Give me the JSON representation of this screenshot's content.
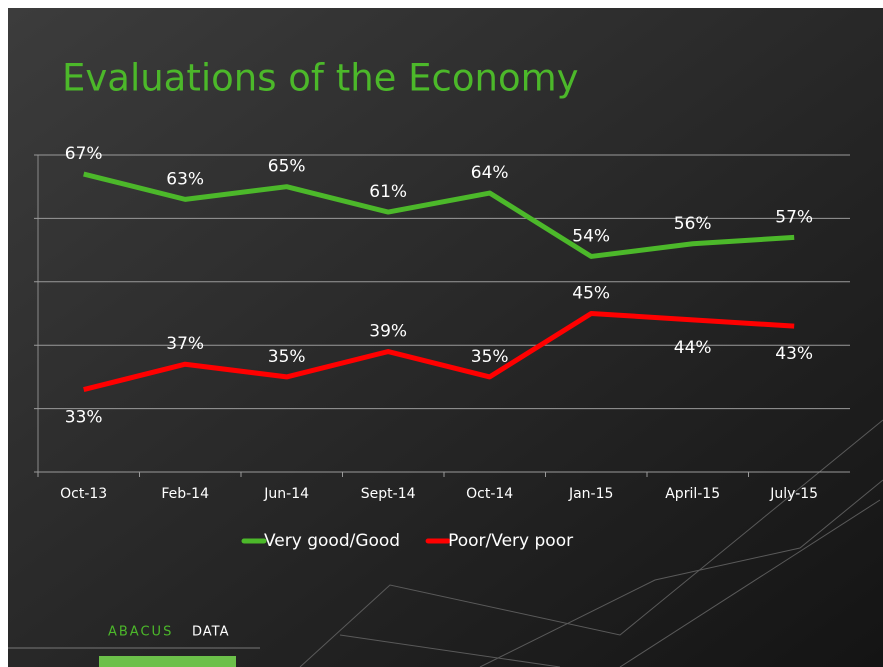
{
  "chart_data": {
    "type": "line",
    "title": "Evaluations of the Economy",
    "categories": [
      "Oct-13",
      "Feb-14",
      "Jun-14",
      "Sept-14",
      "Oct-14",
      "Jan-15",
      "April-15",
      "July-15"
    ],
    "series": [
      {
        "name": "Very good/Good",
        "color": "#4cb82a",
        "values": [
          67,
          63,
          65,
          61,
          64,
          54,
          56,
          57
        ],
        "value_labels": [
          "67%",
          "63%",
          "65%",
          "61%",
          "64%",
          "54%",
          "56%",
          "57%"
        ]
      },
      {
        "name": "Poor/Very poor",
        "color": "#ff0000",
        "values": [
          33,
          37,
          35,
          39,
          35,
          45,
          44,
          43
        ],
        "value_labels": [
          "33%",
          "37%",
          "35%",
          "39%",
          "35%",
          "45%",
          "44%",
          "43%"
        ]
      }
    ],
    "ylim": [
      20,
      70
    ],
    "yticks": [
      20,
      30,
      40,
      50,
      60,
      70
    ],
    "grid": true,
    "legend": "bottom"
  },
  "logo": {
    "brand": "ABACUS",
    "suffix": "DATA"
  }
}
